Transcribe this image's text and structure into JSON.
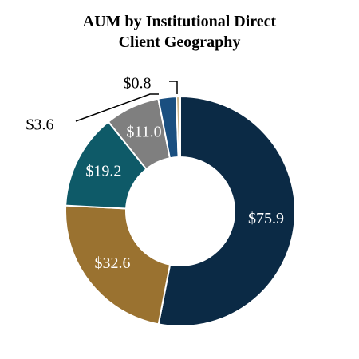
{
  "chart_data": {
    "type": "donut",
    "title": "AUM by Institutional Direct Client Geography",
    "categories": [
      null,
      null,
      null,
      null,
      null,
      null
    ],
    "values": [
      75.9,
      32.6,
      19.2,
      11.0,
      3.6,
      0.8
    ],
    "value_labels": [
      "$75.9",
      "$32.6",
      "$19.2",
      "$11.0",
      "$3.6",
      "$0.8"
    ],
    "colors": [
      "#0b2a45",
      "#9a7230",
      "#0e5a68",
      "#7f7f7f",
      "#1a4f80",
      "#c9b48a"
    ]
  }
}
